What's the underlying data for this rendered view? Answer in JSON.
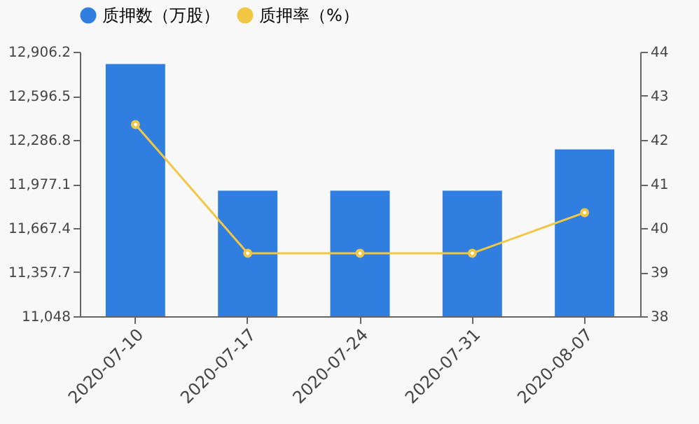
{
  "chart_data": {
    "type": "bar",
    "categories": [
      "2020-07-10",
      "2020-07-17",
      "2020-07-24",
      "2020-07-31",
      "2020-08-07"
    ],
    "series": [
      {
        "name": "质押数（万股）",
        "color": "#2f7ee0",
        "values": [
          12820,
          11930,
          11930,
          11930,
          12220
        ]
      },
      {
        "name": "质押率（%）",
        "type": "line",
        "axis": "y2",
        "color": "#f2c744",
        "values": [
          42.35,
          39.43,
          39.43,
          39.43,
          40.35
        ]
      }
    ],
    "ylim": [
      11048,
      12906.2
    ],
    "yticks": [
      {
        "value": 11048,
        "label": "11,048"
      },
      {
        "value": 11357.7,
        "label": "11,357.7"
      },
      {
        "value": 11667.4,
        "label": "11,667.4"
      },
      {
        "value": 11977.1,
        "label": "11,977.1"
      },
      {
        "value": 12286.8,
        "label": "12,286.8"
      },
      {
        "value": 12596.5,
        "label": "12,596.5"
      },
      {
        "value": 12906.2,
        "label": "12,906.2"
      }
    ],
    "y2lim": [
      38,
      44
    ],
    "y2ticks": [
      38,
      39,
      40,
      41,
      42,
      43,
      44
    ],
    "marker": "circle",
    "legend": "top"
  }
}
